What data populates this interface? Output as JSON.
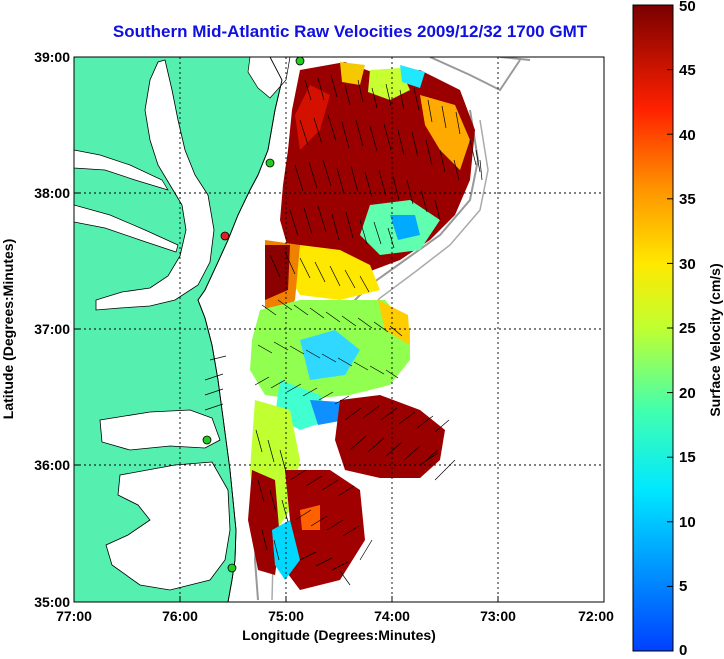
{
  "title": "Southern Mid-Atlantic Raw Velocities 2009/12/32 1700 GMT",
  "xlabel": "Longitude (Degrees:Minutes)",
  "ylabel": "Latitude (Degrees:Minutes)",
  "x_ticks": [
    "77:00",
    "76:00",
    "75:00",
    "74:00",
    "73:00",
    "72:00"
  ],
  "y_ticks": [
    "39:00",
    "38:00",
    "37:00",
    "36:00",
    "35:00"
  ],
  "colorbar": {
    "label": "Surface Velocity (cm/s)",
    "ticks": [
      "50",
      "45",
      "40",
      "35",
      "30",
      "25",
      "20",
      "15",
      "10",
      "5",
      "0"
    ],
    "range": [
      0,
      50
    ],
    "colormap": "jet"
  },
  "colors": {
    "title": "#1010e0",
    "land": "#55f0b0",
    "station": "#22cc22",
    "station_alt": "#e02020"
  },
  "map_extent": {
    "lon": [
      -77,
      -72
    ],
    "lat": [
      35,
      39
    ]
  }
}
